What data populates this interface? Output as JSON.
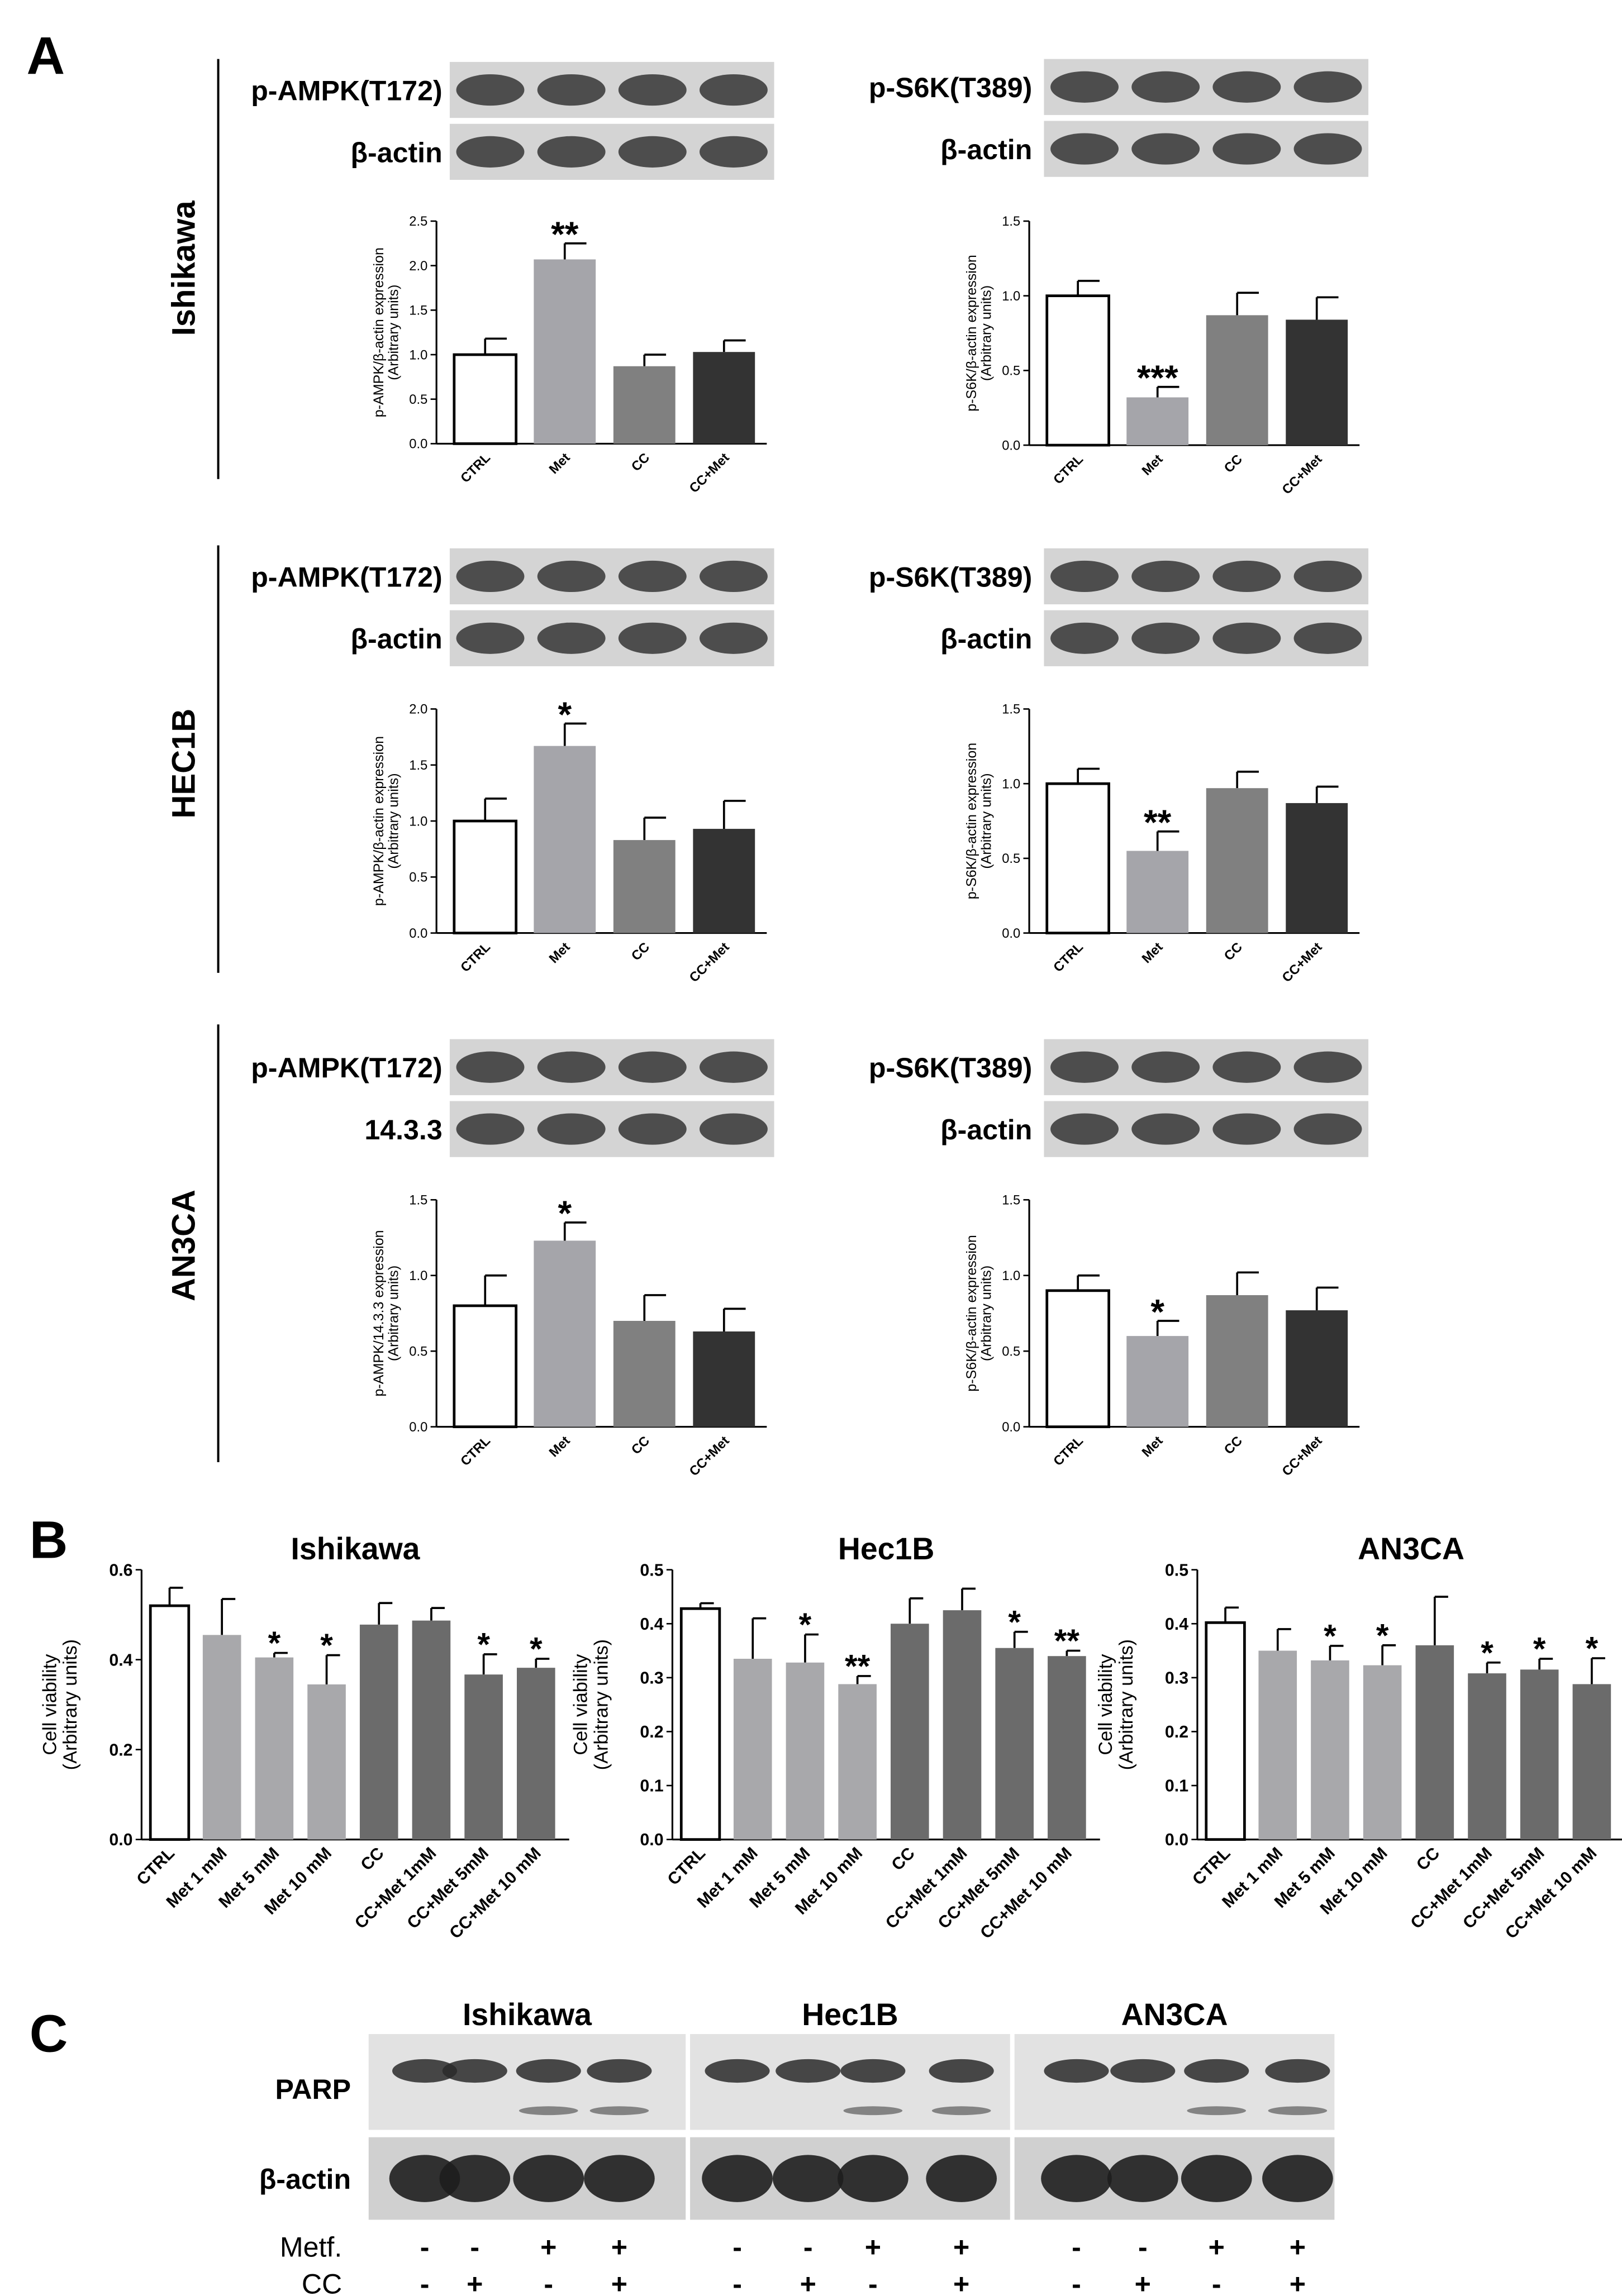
{
  "panel_labels": [
    "A",
    "B",
    "C"
  ],
  "row_labels": [
    "Ishikawa",
    "HEC1B",
    "AN3CA"
  ],
  "chart_data": [
    {
      "type": "bar",
      "blot_labels": [
        "p-AMPK(T172)",
        "β-actin"
      ],
      "ylabel": [
        "p-AMPK/β-actin expression",
        "(Arbitrary units)"
      ],
      "categories": [
        "CTRL",
        "Met",
        "CC",
        "CC+Met"
      ],
      "values": [
        1.0,
        2.07,
        0.87,
        1.03
      ],
      "errors": [
        0.18,
        0.18,
        0.13,
        0.13
      ],
      "significance": [
        null,
        "**",
        null,
        null
      ],
      "colors": [
        "#ffffff",
        "#a5a5aa",
        "#808080",
        "#333333"
      ],
      "ylim": [
        0,
        2.5
      ],
      "yticks": [
        {
          "value": 0,
          "label": "0.0"
        },
        0.5,
        {
          "value": 1,
          "label": "1.0"
        },
        1.5,
        {
          "value": 2,
          "label": "2.0"
        },
        2.5
      ]
    },
    {
      "type": "bar",
      "blot_labels": [
        "p-S6K(T389)",
        "β-actin"
      ],
      "ylabel": [
        "p-S6K/β-actin expression",
        "(Arbitrary units)"
      ],
      "categories": [
        "CTRL",
        "Met",
        "CC",
        "CC+Met"
      ],
      "values": [
        1.0,
        0.32,
        0.87,
        0.84
      ],
      "errors": [
        0.1,
        0.07,
        0.15,
        0.15
      ],
      "significance": [
        null,
        "***",
        null,
        null
      ],
      "colors": [
        "#ffffff",
        "#a5a5aa",
        "#808080",
        "#333333"
      ],
      "ylim": [
        0,
        1.5
      ],
      "yticks": [
        {
          "value": 0,
          "label": "0.0"
        },
        0.5,
        {
          "value": 1,
          "label": "1.0"
        },
        1.5
      ]
    },
    {
      "type": "bar",
      "blot_labels": [
        "p-AMPK(T172)",
        "β-actin"
      ],
      "ylabel": [
        "p-AMPK/β-actin expression",
        "(Arbitrary units)"
      ],
      "categories": [
        "CTRL",
        "Met",
        "CC",
        "CC+Met"
      ],
      "values": [
        1.0,
        1.67,
        0.83,
        0.93
      ],
      "errors": [
        0.2,
        0.2,
        0.2,
        0.25
      ],
      "significance": [
        null,
        "*",
        null,
        null
      ],
      "colors": [
        "#ffffff",
        "#a5a5aa",
        "#808080",
        "#333333"
      ],
      "ylim": [
        0,
        2.0
      ],
      "yticks": [
        {
          "value": 0,
          "label": "0.0"
        },
        0.5,
        {
          "value": 1,
          "label": "1.0"
        },
        1.5,
        {
          "value": 2,
          "label": "2.0"
        }
      ]
    },
    {
      "type": "bar",
      "blot_labels": [
        "p-S6K(T389)",
        "β-actin"
      ],
      "ylabel": [
        "p-S6K/β-actin expression",
        "(Arbitrary units)"
      ],
      "categories": [
        "CTRL",
        "Met",
        "CC",
        "CC+Met"
      ],
      "values": [
        1.0,
        0.55,
        0.97,
        0.87
      ],
      "errors": [
        0.1,
        0.13,
        0.11,
        0.11
      ],
      "significance": [
        null,
        "**",
        null,
        null
      ],
      "colors": [
        "#ffffff",
        "#a5a5aa",
        "#808080",
        "#333333"
      ],
      "ylim": [
        0,
        1.5
      ],
      "yticks": [
        {
          "value": 0,
          "label": "0.0"
        },
        0.5,
        {
          "value": 1,
          "label": "1.0"
        },
        1.5
      ]
    },
    {
      "type": "bar",
      "blot_labels": [
        "p-AMPK(T172)",
        "14.3.3"
      ],
      "ylabel": [
        "p-AMPK/14.3.3 expression",
        "(Arbitrary units)"
      ],
      "categories": [
        "CTRL",
        "Met",
        "CC",
        "CC+Met"
      ],
      "values": [
        0.8,
        1.23,
        0.7,
        0.63
      ],
      "errors": [
        0.2,
        0.12,
        0.17,
        0.15
      ],
      "significance": [
        null,
        "*",
        null,
        null
      ],
      "colors": [
        "#ffffff",
        "#a5a5aa",
        "#808080",
        "#333333"
      ],
      "ylim": [
        0,
        1.5
      ],
      "yticks": [
        {
          "value": 0,
          "label": "0.0"
        },
        0.5,
        {
          "value": 1,
          "label": "1.0"
        },
        1.5
      ]
    },
    {
      "type": "bar",
      "blot_labels": [
        "p-S6K(T389)",
        "β-actin"
      ],
      "ylabel": [
        "p-S6K/β-actin expression",
        "(Arbitrary units)"
      ],
      "categories": [
        "CTRL",
        "Met",
        "CC",
        "CC+Met"
      ],
      "values": [
        0.9,
        0.6,
        0.87,
        0.77
      ],
      "errors": [
        0.1,
        0.1,
        0.15,
        0.15
      ],
      "significance": [
        null,
        "*",
        null,
        null
      ],
      "colors": [
        "#ffffff",
        "#a5a5aa",
        "#808080",
        "#333333"
      ],
      "ylim": [
        0,
        1.5
      ],
      "yticks": [
        {
          "value": 0,
          "label": "0.0"
        },
        0.5,
        {
          "value": 1,
          "label": "1.0"
        },
        1.5
      ]
    },
    {
      "type": "bar",
      "title": "Ishikawa",
      "ylabel": [
        "Cell viability",
        "(Arbitrary units)"
      ],
      "categories": [
        "CTRL",
        "Met 1 mM",
        "Met 5 mM",
        "Met 10 mM",
        "CC",
        "CC+Met 1mM",
        "CC+Met 5mM",
        "CC+Met 10 mM"
      ],
      "values": [
        0.52,
        0.455,
        0.405,
        0.345,
        0.478,
        0.487,
        0.367,
        0.382
      ],
      "errors": [
        0.04,
        0.08,
        0.01,
        0.065,
        0.048,
        0.028,
        0.045,
        0.02
      ],
      "significance": [
        null,
        null,
        "*",
        "*",
        null,
        null,
        "*",
        "*"
      ],
      "colors": [
        "#ffffff",
        "#a8a8ab",
        "#a8a8ab",
        "#a8a8ab",
        "#6b6b6b",
        "#6b6b6b",
        "#6b6b6b",
        "#6b6b6b"
      ],
      "ylim": [
        0,
        0.6
      ],
      "yticks": [
        {
          "value": 0,
          "label": "0.0"
        },
        0.2,
        0.4,
        0.6
      ]
    },
    {
      "type": "bar",
      "title": "Hec1B",
      "ylabel": [
        "Cell viability",
        "(Arbitrary units)"
      ],
      "categories": [
        "CTRL",
        "Met 1 mM",
        "Met 5 mM",
        "Met 10 mM",
        "CC",
        "CC+Met 1mM",
        "CC+Met 5mM",
        "CC+Met 10 mM"
      ],
      "values": [
        0.428,
        0.335,
        0.328,
        0.288,
        0.4,
        0.425,
        0.355,
        0.34
      ],
      "errors": [
        0.01,
        0.075,
        0.052,
        0.015,
        0.047,
        0.04,
        0.03,
        0.01
      ],
      "significance": [
        null,
        null,
        "*",
        "**",
        null,
        null,
        "*",
        "**"
      ],
      "colors": [
        "#ffffff",
        "#a8a8ab",
        "#a8a8ab",
        "#a8a8ab",
        "#6b6b6b",
        "#6b6b6b",
        "#6b6b6b",
        "#6b6b6b"
      ],
      "ylim": [
        0,
        0.5
      ],
      "yticks": [
        {
          "value": 0,
          "label": "0.0"
        },
        0.1,
        0.2,
        0.3,
        0.4,
        0.5
      ]
    },
    {
      "type": "bar",
      "title": "AN3CA",
      "ylabel": [
        "Cell viability",
        "(Arbitrary units)"
      ],
      "categories": [
        "CTRL",
        "Met 1 mM",
        "Met 5 mM",
        "Met 10 mM",
        "CC",
        "CC+Met 1mM",
        "CC+Met 5mM",
        "CC+Met 10 mM"
      ],
      "values": [
        0.402,
        0.35,
        0.332,
        0.323,
        0.36,
        0.308,
        0.315,
        0.288
      ],
      "errors": [
        0.028,
        0.04,
        0.027,
        0.037,
        0.09,
        0.02,
        0.02,
        0.048
      ],
      "significance": [
        null,
        null,
        "*",
        "*",
        null,
        "*",
        "*",
        "*"
      ],
      "colors": [
        "#ffffff",
        "#a8a8ab",
        "#a8a8ab",
        "#a8a8ab",
        "#6b6b6b",
        "#6b6b6b",
        "#6b6b6b",
        "#6b6b6b"
      ],
      "ylim": [
        0,
        0.5
      ],
      "yticks": [
        {
          "value": 0,
          "label": "0.0"
        },
        0.1,
        0.2,
        0.3,
        0.4,
        0.5
      ]
    }
  ],
  "panel_c": {
    "groups": [
      "Ishikawa",
      "Hec1B",
      "AN3CA"
    ],
    "rows": [
      "PARP",
      "β-actin"
    ],
    "treatments": [
      {
        "name": "Metf.",
        "signs": [
          "-",
          "-",
          "+",
          "+"
        ]
      },
      {
        "name": "CC",
        "signs": [
          "-",
          "+",
          "-",
          "+"
        ]
      }
    ]
  }
}
